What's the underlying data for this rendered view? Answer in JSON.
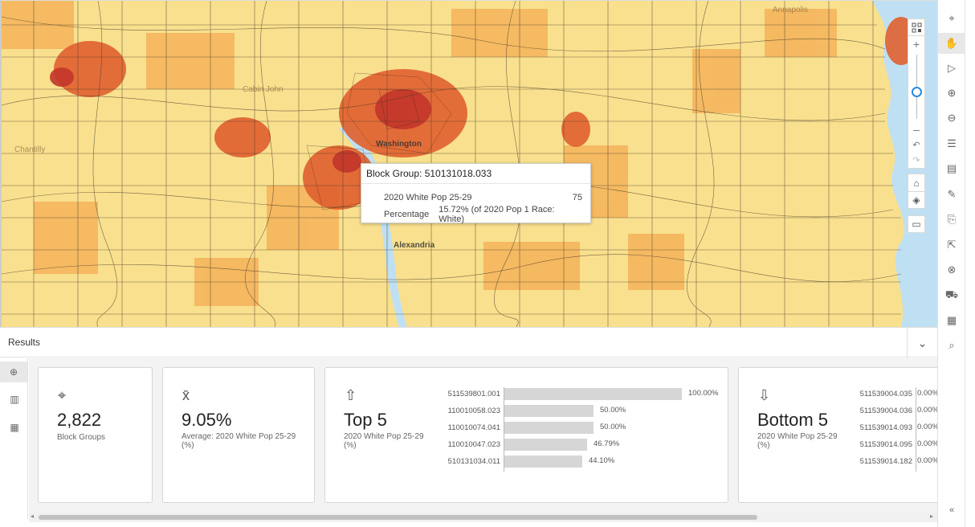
{
  "map": {
    "labels": [
      "Washington",
      "Alexandria",
      "Annapolis",
      "Chantilly",
      "Cabin John"
    ],
    "popup": {
      "title": "Block Group: 510131018.033",
      "rows": [
        {
          "label": "2020 White Pop 25-29",
          "value": "75",
          "extra": ""
        },
        {
          "label": "Percentage",
          "value": "",
          "extra": "15.72% (of 2020 Pop 1 Race: White)"
        }
      ]
    },
    "controls": {
      "zoom_plus": "+",
      "zoom_minus": "–",
      "zoom_level": 0.48
    },
    "colors": {
      "light": "#f8e08e",
      "mid": "#f4b35a",
      "dark": "#e0602f",
      "darkest": "#c2352a",
      "water": "#bfe0f3"
    }
  },
  "results": {
    "title": "Results",
    "cards": {
      "count": {
        "value": "2,822",
        "caption": "Block Groups"
      },
      "average": {
        "value": "9.05%",
        "caption": "Average: 2020 White Pop 25-29 (%)"
      },
      "top": {
        "title": "Top 5",
        "caption": "2020 White Pop 25-29 (%)",
        "items": [
          {
            "id": "511539801.001",
            "pct": 100.0,
            "label": "100.00%"
          },
          {
            "id": "110010058.023",
            "pct": 50.0,
            "label": "50.00%"
          },
          {
            "id": "110010074.041",
            "pct": 50.0,
            "label": "50.00%"
          },
          {
            "id": "110010047.023",
            "pct": 46.79,
            "label": "46.79%"
          },
          {
            "id": "510131034.011",
            "pct": 44.1,
            "label": "44.10%"
          }
        ]
      },
      "bottom": {
        "title": "Bottom 5",
        "caption": "2020 White Pop 25-29 (%)",
        "items": [
          {
            "id": "511539004.035",
            "pct": 0,
            "label": "0.00%"
          },
          {
            "id": "511539004.036",
            "pct": 0,
            "label": "0.00%"
          },
          {
            "id": "511539014.093",
            "pct": 0,
            "label": "0.00%"
          },
          {
            "id": "511539014.095",
            "pct": 0,
            "label": "0.00%"
          },
          {
            "id": "511539014.182",
            "pct": 0,
            "label": "0.00%"
          }
        ]
      }
    }
  },
  "toolbar_icons": [
    "pin-icon",
    "pan-hand-icon",
    "select-arrow-icon",
    "zoom-in-icon",
    "zoom-out-icon",
    "legend-icon",
    "measure-icon",
    "style-icon",
    "export-icon",
    "share-icon",
    "clear-icon",
    "drive-time-icon",
    "table-icon",
    "map-query-icon"
  ]
}
